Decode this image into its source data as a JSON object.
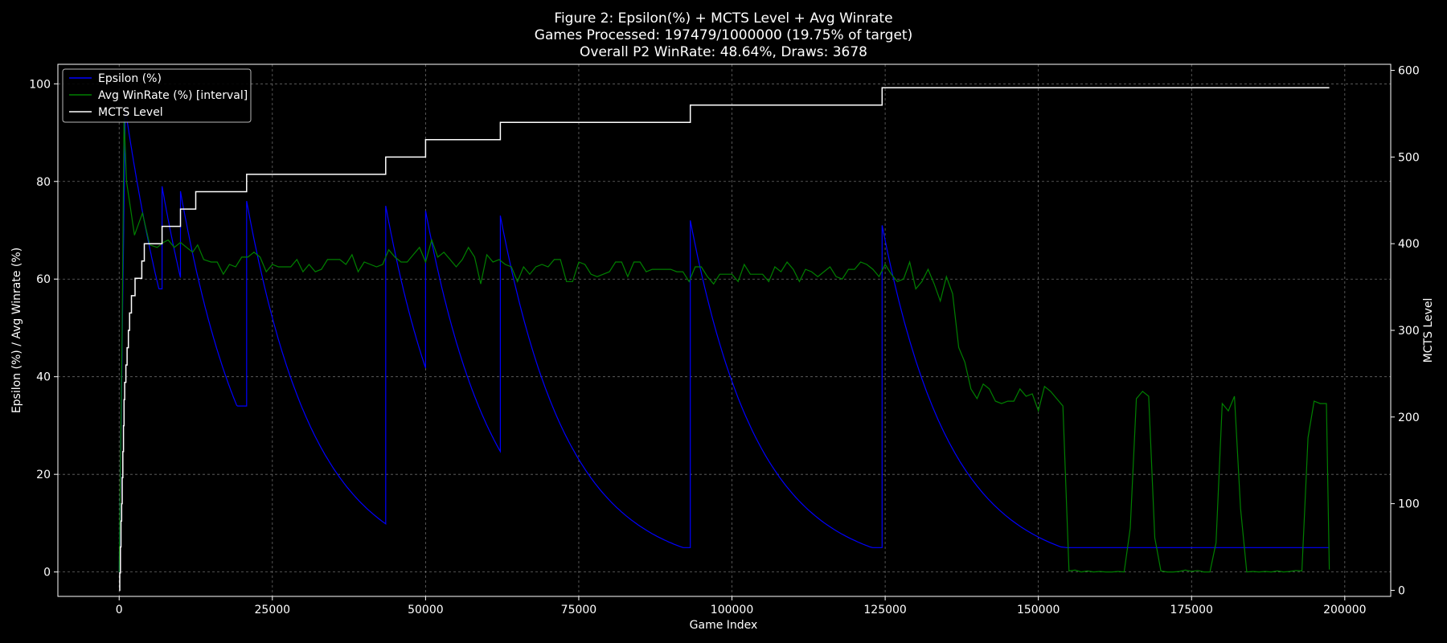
{
  "chart_data": {
    "type": "line",
    "title_lines": [
      "Figure 2: Epsilon(%) + MCTS Level + Avg Winrate",
      "Games Processed: 197479/1000000 (19.75% of target)",
      "Overall P2 WinRate: 48.64%, Draws: 3678"
    ],
    "xlabel": "Game Index",
    "ylabel_left": "Epsilon (%) / Avg Winrate (%)",
    "ylabel_right": "MCTS Level",
    "xlim": [
      -10000,
      207500
    ],
    "ylim_left": [
      -5,
      104
    ],
    "ylim_right": [
      -7,
      607
    ],
    "x_ticks": [
      0,
      25000,
      50000,
      75000,
      100000,
      125000,
      150000,
      175000,
      200000
    ],
    "x_tick_labels": [
      "0",
      "25000",
      "50000",
      "75000",
      "100000",
      "125000",
      "150000",
      "175000",
      "200000"
    ],
    "y_left_ticks": [
      0,
      20,
      40,
      60,
      80,
      100
    ],
    "y_left_tick_labels": [
      "0",
      "20",
      "40",
      "60",
      "80",
      "100"
    ],
    "y_right_ticks": [
      0,
      100,
      200,
      300,
      400,
      500,
      600
    ],
    "y_right_tick_labels": [
      "0",
      "100",
      "200",
      "300",
      "400",
      "500",
      "600"
    ],
    "grid": true,
    "legend_position": "top-left",
    "series": [
      {
        "name": "Epsilon (%)",
        "color": "#0000ff",
        "axis": "left",
        "decay_segments": [
          {
            "start": 0,
            "end": 1000,
            "from": 0,
            "to": 95,
            "rate": 0
          },
          {
            "start": 1000,
            "end": 7000,
            "from": 95,
            "to": 58,
            "rate": 9e-05
          },
          {
            "start": 7000,
            "end": 10000,
            "from": 79,
            "to": 59,
            "rate": 9e-05
          },
          {
            "start": 10000,
            "end": 20800,
            "from": 78,
            "to": 34,
            "rate": 9e-05
          },
          {
            "start": 20800,
            "end": 43500,
            "from": 76,
            "to": 8,
            "rate": 9e-05
          },
          {
            "start": 43500,
            "end": 50000,
            "from": 75,
            "to": 38,
            "rate": 9e-05
          },
          {
            "start": 50000,
            "end": 62200,
            "from": 74,
            "to": 22,
            "rate": 9e-05
          },
          {
            "start": 62200,
            "end": 93200,
            "from": 73,
            "to": 5,
            "rate": 9e-05
          },
          {
            "start": 93200,
            "end": 124500,
            "from": 72,
            "to": 5,
            "rate": 9e-05
          },
          {
            "start": 124500,
            "end": 197479,
            "from": 71,
            "to": 5,
            "rate": 9e-05
          }
        ]
      },
      {
        "name": "Avg WinRate (%) [interval]",
        "color": "#008000",
        "axis": "left",
        "points": [
          [
            0,
            0
          ],
          [
            500,
            50
          ],
          [
            800,
            93
          ],
          [
            1200,
            80
          ],
          [
            2500,
            69
          ],
          [
            3800,
            73.5
          ],
          [
            5000,
            67
          ],
          [
            6200,
            66.5
          ],
          [
            7200,
            67.5
          ],
          [
            8000,
            68
          ],
          [
            9000,
            66.5
          ],
          [
            10000,
            67.5
          ],
          [
            11000,
            66.5
          ],
          [
            12000,
            65.5
          ],
          [
            12800,
            67
          ],
          [
            13800,
            64
          ],
          [
            15000,
            63.5
          ],
          [
            16000,
            63.5
          ],
          [
            17000,
            61
          ],
          [
            18000,
            63
          ],
          [
            19000,
            62.5
          ],
          [
            20000,
            64.5
          ],
          [
            21000,
            64.5
          ],
          [
            22000,
            65.5
          ],
          [
            23000,
            64.5
          ],
          [
            24000,
            61.5
          ],
          [
            25000,
            63
          ],
          [
            26000,
            62.5
          ],
          [
            27000,
            62.5
          ],
          [
            28000,
            62.5
          ],
          [
            29000,
            64
          ],
          [
            30000,
            61.5
          ],
          [
            31000,
            63
          ],
          [
            32000,
            61.5
          ],
          [
            33000,
            62
          ],
          [
            34000,
            64
          ],
          [
            35000,
            64
          ],
          [
            36000,
            64
          ],
          [
            37000,
            63
          ],
          [
            38000,
            65
          ],
          [
            39000,
            61.5
          ],
          [
            40000,
            63.5
          ],
          [
            41000,
            63
          ],
          [
            42000,
            62.5
          ],
          [
            43000,
            63
          ],
          [
            44000,
            66
          ],
          [
            45000,
            64.5
          ],
          [
            46000,
            63.5
          ],
          [
            47000,
            63.5
          ],
          [
            48000,
            65
          ],
          [
            49000,
            66.5
          ],
          [
            50000,
            63.5
          ],
          [
            51000,
            68
          ],
          [
            52000,
            64.5
          ],
          [
            53000,
            65.5
          ],
          [
            54000,
            64
          ],
          [
            55000,
            62.5
          ],
          [
            56000,
            64
          ],
          [
            57000,
            66.5
          ],
          [
            58000,
            64.5
          ],
          [
            59000,
            59
          ],
          [
            60000,
            65
          ],
          [
            61000,
            63.5
          ],
          [
            62000,
            64
          ],
          [
            63000,
            63
          ],
          [
            64000,
            62.5
          ],
          [
            65000,
            59.5
          ],
          [
            66000,
            62.5
          ],
          [
            67000,
            61
          ],
          [
            68000,
            62.5
          ],
          [
            69000,
            63
          ],
          [
            70000,
            62.5
          ],
          [
            71000,
            64
          ],
          [
            72000,
            64
          ],
          [
            73000,
            59.5
          ],
          [
            74000,
            59.5
          ],
          [
            75000,
            63.5
          ],
          [
            76000,
            63
          ],
          [
            77000,
            61
          ],
          [
            78000,
            60.5
          ],
          [
            79000,
            61
          ],
          [
            80000,
            61.5
          ],
          [
            81000,
            63.5
          ],
          [
            82000,
            63.5
          ],
          [
            83000,
            60.5
          ],
          [
            84000,
            63.5
          ],
          [
            85000,
            63.5
          ],
          [
            86000,
            61.5
          ],
          [
            87000,
            62
          ],
          [
            88000,
            62
          ],
          [
            89000,
            62
          ],
          [
            90000,
            62
          ],
          [
            91000,
            61.5
          ],
          [
            92000,
            61.5
          ],
          [
            93000,
            59.5
          ],
          [
            94000,
            62.5
          ],
          [
            95000,
            62.5
          ],
          [
            96000,
            60.5
          ],
          [
            97000,
            59
          ],
          [
            98000,
            61
          ],
          [
            99000,
            61
          ],
          [
            100000,
            61
          ],
          [
            101000,
            59.5
          ],
          [
            102000,
            63
          ],
          [
            103000,
            61
          ],
          [
            104000,
            61
          ],
          [
            105000,
            61
          ],
          [
            106000,
            59.5
          ],
          [
            107000,
            62.5
          ],
          [
            108000,
            61.5
          ],
          [
            109000,
            63.5
          ],
          [
            110000,
            62
          ],
          [
            111000,
            59.5
          ],
          [
            112000,
            62
          ],
          [
            113000,
            61.5
          ],
          [
            114000,
            60.5
          ],
          [
            115000,
            61.5
          ],
          [
            116000,
            62.5
          ],
          [
            117000,
            60.5
          ],
          [
            118000,
            60
          ],
          [
            119000,
            62
          ],
          [
            120000,
            62
          ],
          [
            121000,
            63.5
          ],
          [
            122000,
            63
          ],
          [
            123000,
            62
          ],
          [
            124000,
            60.5
          ],
          [
            125000,
            63
          ],
          [
            126000,
            61
          ],
          [
            127000,
            59.5
          ],
          [
            128000,
            60
          ],
          [
            129000,
            63.5
          ],
          [
            130000,
            58
          ],
          [
            131000,
            59.5
          ],
          [
            132000,
            62
          ],
          [
            133000,
            59
          ],
          [
            134000,
            55.5
          ],
          [
            135000,
            60.5
          ],
          [
            136000,
            57
          ],
          [
            137000,
            46
          ],
          [
            138000,
            43
          ],
          [
            139000,
            37.5
          ],
          [
            140000,
            35.5
          ],
          [
            141000,
            38.5
          ],
          [
            142000,
            37.5
          ],
          [
            143000,
            35
          ],
          [
            144000,
            34.5
          ],
          [
            145000,
            35
          ],
          [
            146000,
            35
          ],
          [
            147000,
            37.5
          ],
          [
            148000,
            36
          ],
          [
            149000,
            36.5
          ],
          [
            150000,
            33
          ],
          [
            151000,
            38
          ],
          [
            152000,
            37
          ],
          [
            153000,
            35.5
          ],
          [
            154000,
            34
          ],
          [
            155000,
            0.2
          ],
          [
            156000,
            0.4
          ],
          [
            157000,
            0
          ],
          [
            158000,
            0.2
          ],
          [
            159000,
            0
          ],
          [
            160000,
            0.1
          ],
          [
            161000,
            0
          ],
          [
            162000,
            0
          ],
          [
            163000,
            0.1
          ],
          [
            164000,
            0
          ],
          [
            165000,
            9
          ],
          [
            166000,
            35.5
          ],
          [
            167000,
            37
          ],
          [
            168000,
            36
          ],
          [
            169000,
            7
          ],
          [
            170000,
            0.2
          ],
          [
            171000,
            0
          ],
          [
            172000,
            0
          ],
          [
            173000,
            0.1
          ],
          [
            174000,
            0.4
          ],
          [
            175000,
            0.1
          ],
          [
            176000,
            0.3
          ],
          [
            177000,
            0
          ],
          [
            178000,
            0
          ],
          [
            179000,
            6
          ],
          [
            180000,
            34.5
          ],
          [
            181000,
            33
          ],
          [
            182000,
            36
          ],
          [
            183000,
            13
          ],
          [
            184000,
            0
          ],
          [
            185000,
            0.1
          ],
          [
            186000,
            0
          ],
          [
            187000,
            0.1
          ],
          [
            188000,
            0
          ],
          [
            189000,
            0.2
          ],
          [
            190000,
            0
          ],
          [
            191000,
            0.1
          ],
          [
            192000,
            0.3
          ],
          [
            193000,
            0.2
          ],
          [
            194000,
            27.5
          ],
          [
            195000,
            35
          ],
          [
            196000,
            34.5
          ],
          [
            197000,
            34.5
          ],
          [
            197479,
            0.5
          ]
        ]
      },
      {
        "name": "MCTS Level",
        "color": "#ffffff",
        "axis": "right",
        "step_points": [
          [
            0,
            0
          ],
          [
            100,
            20
          ],
          [
            200,
            50
          ],
          [
            300,
            80
          ],
          [
            400,
            100
          ],
          [
            500,
            130
          ],
          [
            600,
            160
          ],
          [
            700,
            190
          ],
          [
            800,
            220
          ],
          [
            900,
            240
          ],
          [
            1100,
            260
          ],
          [
            1300,
            280
          ],
          [
            1500,
            300
          ],
          [
            1700,
            320
          ],
          [
            2000,
            340
          ],
          [
            2600,
            360
          ],
          [
            3700,
            380
          ],
          [
            4100,
            400
          ],
          [
            7000,
            420
          ],
          [
            10000,
            440
          ],
          [
            12500,
            460
          ],
          [
            20800,
            480
          ],
          [
            43500,
            500
          ],
          [
            50000,
            520
          ],
          [
            62200,
            540
          ],
          [
            93200,
            560
          ],
          [
            124500,
            580
          ],
          [
            197479,
            580
          ]
        ]
      }
    ]
  }
}
